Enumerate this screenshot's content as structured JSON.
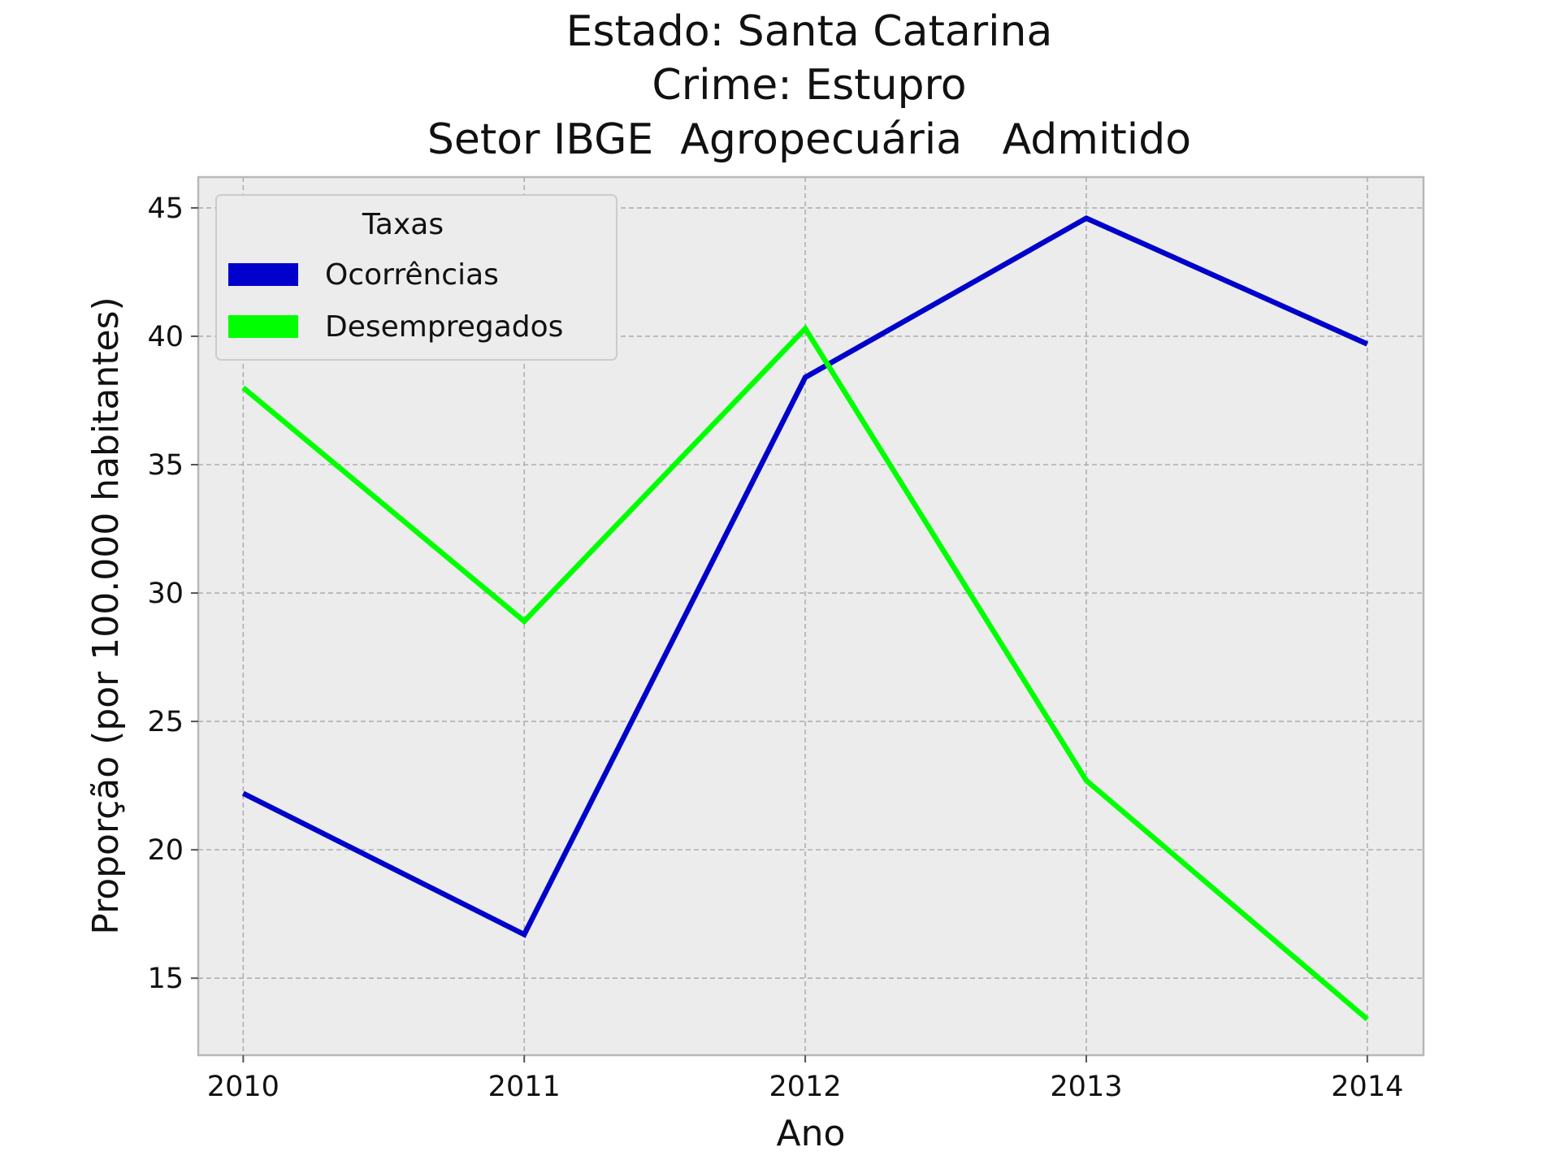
{
  "chart_data": {
    "type": "line",
    "title_lines": [
      "Estado: Santa Catarina",
      "Crime: Estupro",
      "Setor IBGE  Agropecuária   Admitido"
    ],
    "xlabel": "Ano",
    "ylabel": "Proporção (por 100.000 habitantes)",
    "x": [
      2010,
      2011,
      2012,
      2013,
      2014
    ],
    "x_tick_labels": [
      "2010",
      "2011",
      "2012",
      "2013",
      "2014"
    ],
    "yticks": [
      15,
      20,
      25,
      30,
      35,
      40,
      45
    ],
    "y_tick_labels": [
      "15",
      "20",
      "25",
      "30",
      "35",
      "40",
      "45"
    ],
    "xlim": [
      2009.84,
      2014.2
    ],
    "ylim": [
      12.0,
      46.2
    ],
    "grid": true,
    "legend": {
      "title": "Taxas",
      "position": "top-left"
    },
    "series": [
      {
        "name": "Ocorrências",
        "color": "#0000cc",
        "values": [
          22.2,
          16.7,
          38.4,
          44.6,
          39.7
        ]
      },
      {
        "name": "Desempregados",
        "color": "#00ff00",
        "values": [
          38.0,
          28.9,
          40.3,
          22.7,
          13.4
        ]
      }
    ]
  }
}
